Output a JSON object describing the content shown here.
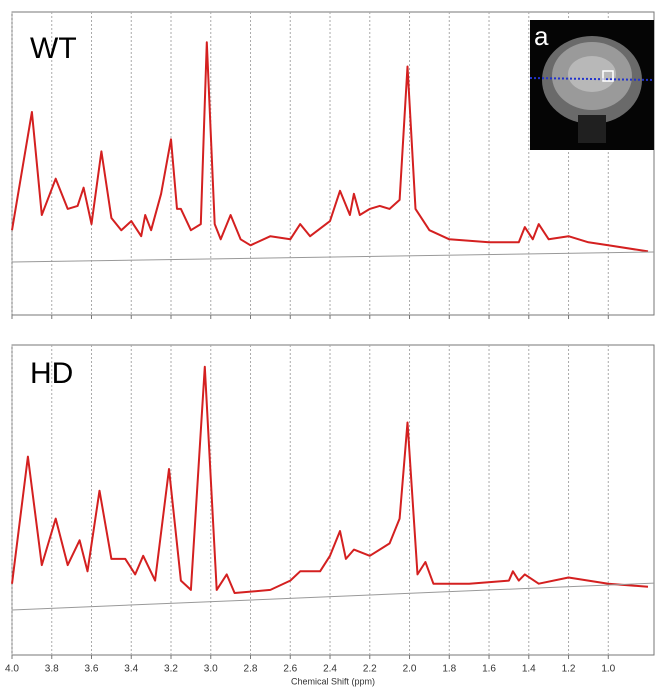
{
  "chart_data": [
    {
      "type": "line",
      "title": "WT",
      "inset_label": "a",
      "xlim": [
        4.0,
        0.77
      ],
      "ylim": [
        0,
        100
      ],
      "grid": true,
      "tick_labels": false,
      "xticks": [
        {
          "value": 4,
          "label": "4.0"
        },
        3.8,
        3.6,
        3.4,
        3.2,
        {
          "value": 3,
          "label": "3.0"
        },
        2.8,
        2.6,
        2.4,
        2.2,
        {
          "value": 2,
          "label": "2.0"
        },
        1.8,
        1.6,
        1.4,
        1.2,
        {
          "value": 1,
          "label": "1.0"
        }
      ],
      "series": [
        {
          "color": "#d42020",
          "x": [
            4.0,
            3.9,
            3.85,
            3.78,
            3.72,
            3.67,
            3.64,
            3.6,
            3.55,
            3.5,
            3.45,
            3.4,
            3.35,
            3.33,
            3.3,
            3.25,
            3.2,
            3.17,
            3.15,
            3.1,
            3.05,
            3.02,
            2.98,
            2.95,
            2.9,
            2.85,
            2.8,
            2.7,
            2.6,
            2.55,
            2.5,
            2.4,
            2.35,
            2.3,
            2.28,
            2.25,
            2.2,
            2.15,
            2.1,
            2.05,
            2.01,
            1.97,
            1.9,
            1.8,
            1.6,
            1.45,
            1.42,
            1.38,
            1.35,
            1.3,
            1.2,
            1.1,
            1.0,
            0.8
          ],
          "values": [
            28,
            67,
            33,
            45,
            35,
            36,
            42,
            30,
            54,
            32,
            28,
            31,
            26,
            33,
            28,
            40,
            58,
            35,
            35,
            28,
            30,
            90,
            30,
            25,
            33,
            25,
            23,
            26,
            25,
            30,
            26,
            31,
            41,
            33,
            40,
            33,
            35,
            36,
            35,
            38,
            82,
            35,
            28,
            25,
            24,
            24,
            29,
            25,
            30,
            25,
            26,
            24,
            23,
            21
          ]
        },
        {
          "color": "#999999",
          "x": [
            4.0,
            0.77
          ],
          "values": [
            17.5,
            20.8
          ]
        }
      ]
    },
    {
      "type": "line",
      "title": "HD",
      "xlabel": "Chemical Shift (ppm)",
      "xlim": [
        4.0,
        0.77
      ],
      "ylim": [
        0,
        100
      ],
      "grid": true,
      "tick_labels": true,
      "xticks": [
        {
          "value": 4,
          "label": "4.0"
        },
        3.8,
        3.6,
        3.4,
        3.2,
        {
          "value": 3,
          "label": "3.0"
        },
        2.8,
        2.6,
        2.4,
        2.2,
        {
          "value": 2,
          "label": "2.0"
        },
        1.8,
        1.6,
        1.4,
        1.2,
        {
          "value": 1,
          "label": "1.0"
        }
      ],
      "series": [
        {
          "color": "#d42020",
          "x": [
            4.0,
            3.92,
            3.85,
            3.78,
            3.72,
            3.66,
            3.62,
            3.56,
            3.5,
            3.43,
            3.38,
            3.34,
            3.28,
            3.21,
            3.15,
            3.1,
            3.03,
            2.97,
            2.92,
            2.88,
            2.7,
            2.6,
            2.55,
            2.45,
            2.4,
            2.35,
            2.32,
            2.28,
            2.2,
            2.1,
            2.05,
            2.01,
            1.96,
            1.92,
            1.88,
            1.7,
            1.5,
            1.48,
            1.45,
            1.42,
            1.35,
            1.2,
            1.0,
            0.8
          ],
          "values": [
            23,
            64,
            29,
            44,
            29,
            37,
            27,
            53,
            31,
            31,
            26,
            32,
            24,
            60,
            24,
            21,
            93,
            21,
            26,
            20,
            21,
            24,
            27,
            27,
            32,
            40,
            31,
            34,
            32,
            36,
            44,
            75,
            26,
            30,
            23,
            23,
            24,
            27,
            24,
            26,
            23,
            25,
            23,
            22
          ]
        },
        {
          "color": "#999999",
          "x": [
            4.0,
            0.77
          ],
          "values": [
            14.5,
            23.2
          ]
        }
      ]
    }
  ]
}
